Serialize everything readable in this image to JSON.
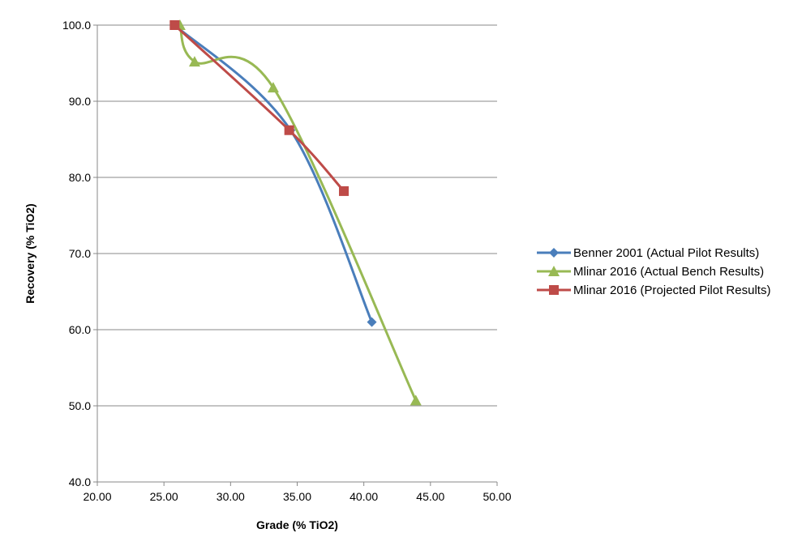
{
  "chart_data": {
    "type": "line",
    "title": "",
    "xlabel": "Grade (% TiO2)",
    "ylabel": "Recovery (% TiO2)",
    "xlim": [
      20,
      50
    ],
    "ylim": [
      40,
      100
    ],
    "x_ticks": [
      "20.00",
      "25.00",
      "30.00",
      "35.00",
      "40.00",
      "45.00",
      "50.00"
    ],
    "y_ticks": [
      "40.0",
      "50.0",
      "60.0",
      "70.0",
      "80.0",
      "90.0",
      "100.0"
    ],
    "grid": "horizontal major gridlines",
    "legend_position": "right",
    "smoothed": true,
    "series": [
      {
        "name": "Benner 2001 (Actual Pilot Results)",
        "color": "#4a7ebb",
        "marker": "diamond",
        "points": [
          [
            25.8,
            100.0
          ],
          [
            34.5,
            86.2
          ],
          [
            40.6,
            61.0
          ]
        ]
      },
      {
        "name": "Mlinar 2016 (Actual Bench Results)",
        "color": "#98b954",
        "marker": "triangle",
        "points": [
          [
            26.2,
            100.0
          ],
          [
            27.3,
            95.2
          ],
          [
            33.2,
            91.8
          ],
          [
            43.9,
            50.7
          ]
        ]
      },
      {
        "name": "Mlinar 2016 (Projected Pilot Results)",
        "color": "#be4b48",
        "marker": "square",
        "points": [
          [
            25.8,
            100.0
          ],
          [
            34.4,
            86.2
          ],
          [
            38.5,
            78.2
          ]
        ]
      }
    ]
  }
}
